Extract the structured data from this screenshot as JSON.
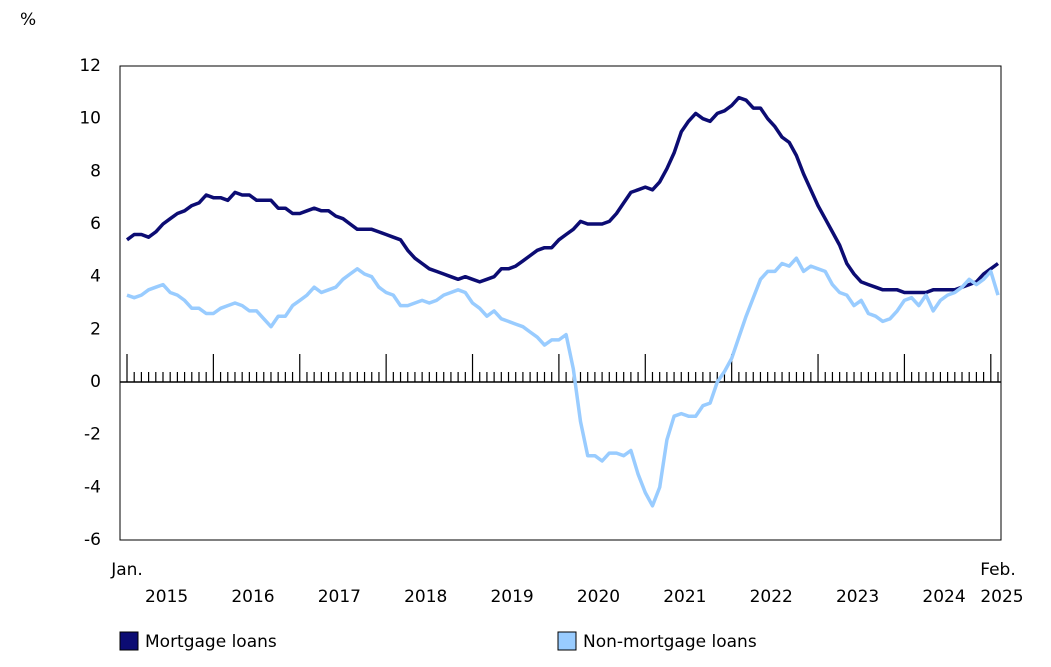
{
  "chart_data": {
    "type": "line",
    "y_label": "%",
    "categories": [
      "Jan.",
      null,
      null,
      null,
      null,
      null,
      null,
      null,
      null,
      null,
      null,
      null,
      null,
      null,
      null,
      null,
      null,
      null,
      null,
      null,
      null,
      null,
      null,
      null,
      null,
      null,
      null,
      null,
      null,
      null,
      null,
      null,
      null,
      null,
      null,
      null,
      null,
      null,
      null,
      null,
      null,
      null,
      null,
      null,
      null,
      null,
      null,
      null,
      null,
      null,
      null,
      null,
      null,
      null,
      null,
      null,
      null,
      null,
      null,
      null,
      null,
      null,
      null,
      null,
      null,
      null,
      null,
      null,
      null,
      null,
      null,
      null,
      null,
      null,
      null,
      null,
      null,
      null,
      null,
      null,
      null,
      null,
      null,
      null,
      null,
      null,
      null,
      null,
      null,
      null,
      null,
      null,
      null,
      null,
      null,
      null,
      null,
      null,
      null,
      null,
      null,
      null,
      null,
      null,
      null,
      null,
      null,
      null,
      null,
      null,
      null,
      null,
      null,
      null,
      null,
      null,
      null,
      null,
      null,
      null,
      null,
      "Feb."
    ],
    "year_labels": [
      "2015",
      "2016",
      "2017",
      "2018",
      "2019",
      "2020",
      "2021",
      "2022",
      "2023",
      "2024",
      "2025"
    ],
    "ylim": [
      -6,
      12
    ],
    "yticks": [
      -6,
      -4,
      -2,
      0,
      2,
      4,
      6,
      8,
      10,
      12
    ],
    "series": [
      {
        "name": "Mortgage loans",
        "color": "#0c0c73",
        "values": [
          5.4,
          5.6,
          5.6,
          5.5,
          5.7,
          6.0,
          6.2,
          6.4,
          6.5,
          6.7,
          6.8,
          7.1,
          7.0,
          7.0,
          6.9,
          7.2,
          7.1,
          7.1,
          6.9,
          6.9,
          6.9,
          6.6,
          6.6,
          6.4,
          6.4,
          6.5,
          6.6,
          6.5,
          6.5,
          6.3,
          6.2,
          6.0,
          5.8,
          5.8,
          5.8,
          5.7,
          5.6,
          5.5,
          5.4,
          5.0,
          4.7,
          4.5,
          4.3,
          4.2,
          4.1,
          4.0,
          3.9,
          4.0,
          3.9,
          3.8,
          3.9,
          4.0,
          4.3,
          4.3,
          4.4,
          4.6,
          4.8,
          5.0,
          5.1,
          5.1,
          5.4,
          5.6,
          5.8,
          6.1,
          6.0,
          6.0,
          6.0,
          6.1,
          6.4,
          6.8,
          7.2,
          7.3,
          7.4,
          7.3,
          7.6,
          8.1,
          8.7,
          9.5,
          9.9,
          10.2,
          10.0,
          9.9,
          10.2,
          10.3,
          10.5,
          10.8,
          10.7,
          10.4,
          10.4,
          10.0,
          9.7,
          9.3,
          9.1,
          8.6,
          7.9,
          7.3,
          6.7,
          6.2,
          5.7,
          5.2,
          4.5,
          4.1,
          3.8,
          3.7,
          3.6,
          3.5,
          3.5,
          3.5,
          3.4,
          3.4,
          3.4,
          3.4,
          3.5,
          3.5,
          3.5,
          3.5,
          3.6,
          3.7,
          3.8,
          4.1,
          4.3,
          4.5
        ]
      },
      {
        "name": "Non-mortgage loans",
        "color": "#99ccff",
        "values": [
          3.3,
          3.2,
          3.3,
          3.5,
          3.6,
          3.7,
          3.4,
          3.3,
          3.1,
          2.8,
          2.8,
          2.6,
          2.6,
          2.8,
          2.9,
          3.0,
          2.9,
          2.7,
          2.7,
          2.4,
          2.1,
          2.5,
          2.5,
          2.9,
          3.1,
          3.3,
          3.6,
          3.4,
          3.5,
          3.6,
          3.9,
          4.1,
          4.3,
          4.1,
          4.0,
          3.6,
          3.4,
          3.3,
          2.9,
          2.9,
          3.0,
          3.1,
          3.0,
          3.1,
          3.3,
          3.4,
          3.5,
          3.4,
          3.0,
          2.8,
          2.5,
          2.7,
          2.4,
          2.3,
          2.2,
          2.1,
          1.9,
          1.7,
          1.4,
          1.6,
          1.6,
          1.8,
          0.5,
          -1.5,
          -2.8,
          -2.8,
          -3.0,
          -2.7,
          -2.7,
          -2.8,
          -2.6,
          -3.5,
          -4.2,
          -4.7,
          -4.0,
          -2.2,
          -1.3,
          -1.2,
          -1.3,
          -1.3,
          -0.9,
          -0.8,
          0.0,
          0.4,
          0.9,
          1.7,
          2.5,
          3.2,
          3.9,
          4.2,
          4.2,
          4.5,
          4.4,
          4.7,
          4.2,
          4.4,
          4.3,
          4.2,
          3.7,
          3.4,
          3.3,
          2.9,
          3.1,
          2.6,
          2.5,
          2.3,
          2.4,
          2.7,
          3.1,
          3.2,
          2.9,
          3.3,
          2.7,
          3.1,
          3.3,
          3.4,
          3.6,
          3.9,
          3.7,
          3.9,
          4.2,
          3.3
        ]
      }
    ]
  }
}
